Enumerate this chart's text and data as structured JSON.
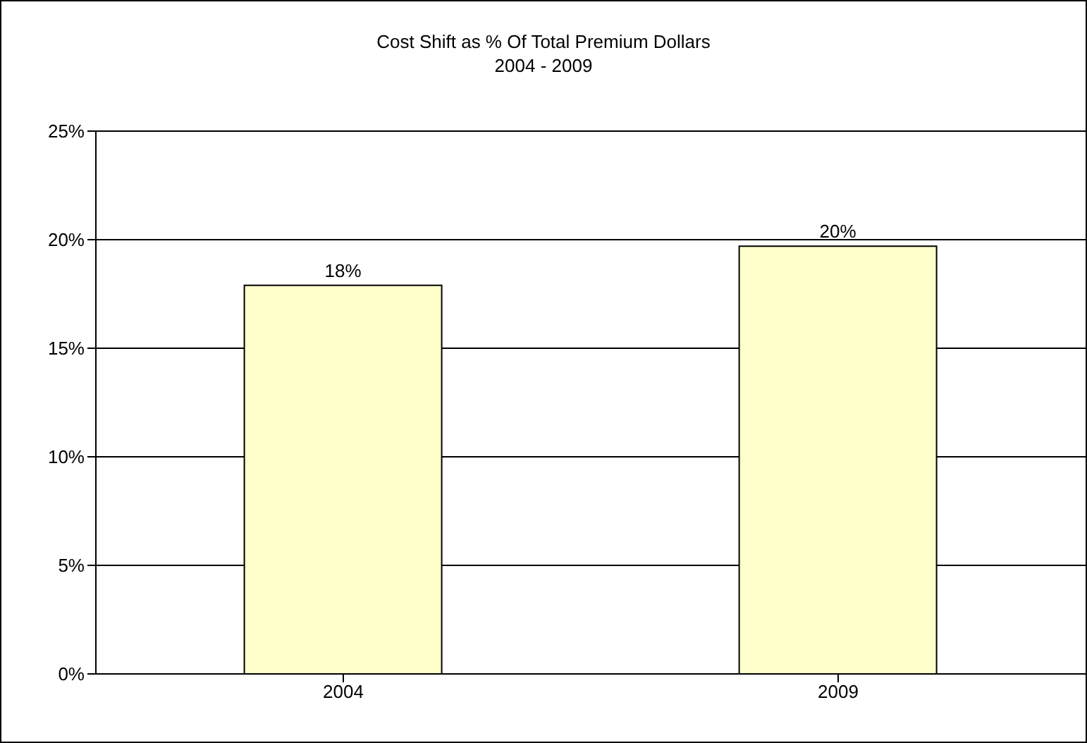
{
  "chart_data": {
    "type": "bar",
    "title": "Cost Shift as % Of Total Premium Dollars",
    "subtitle": "2004 - 2009",
    "categories": [
      "2004",
      "2009"
    ],
    "values": [
      17.9,
      19.7
    ],
    "value_labels": [
      "18%",
      "20%"
    ],
    "color": "#ffffcc",
    "ylim": [
      0,
      25
    ],
    "yticks": [
      {
        "value": 0,
        "label": "0%"
      },
      {
        "value": 5,
        "label": "5%"
      },
      {
        "value": 10,
        "label": "10%"
      },
      {
        "value": 15,
        "label": "15%"
      },
      {
        "value": 20,
        "label": "20%"
      },
      {
        "value": 25,
        "label": "25%"
      }
    ],
    "grid": "y"
  }
}
